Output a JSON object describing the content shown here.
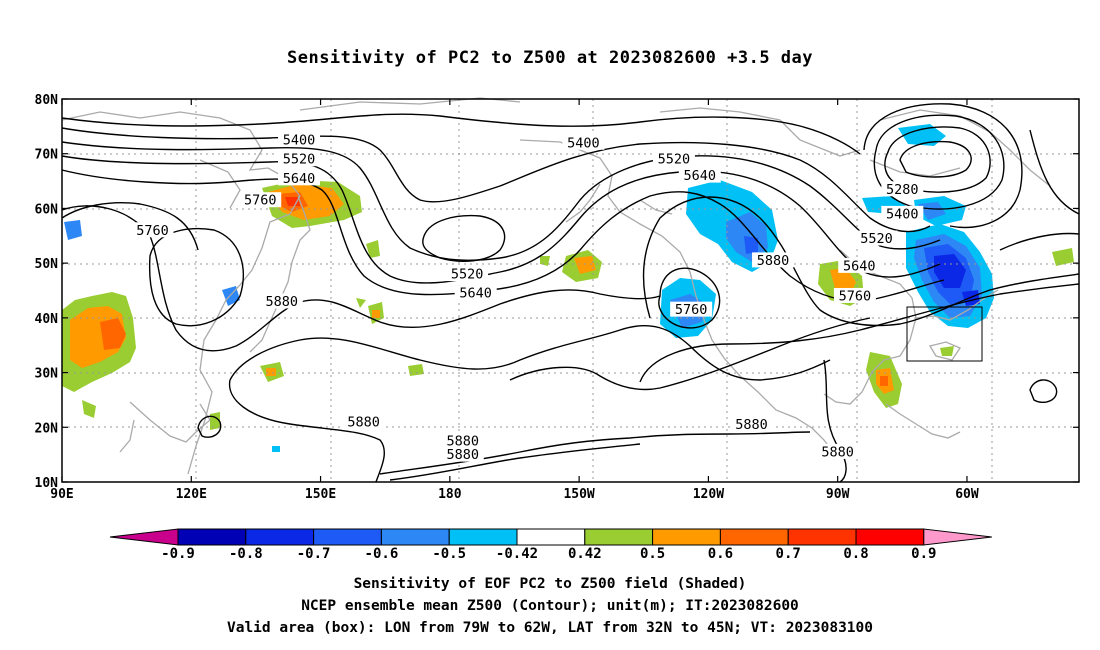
{
  "title": "Sensitivity of PC2 to Z500 at 2023082600 +3.5 day",
  "axes": {
    "x_ticks": [
      "90E",
      "120E",
      "150E",
      "180",
      "150W",
      "120W",
      "90W",
      "60W"
    ],
    "y_ticks": [
      "80N",
      "70N",
      "60N",
      "50N",
      "40N",
      "30N",
      "20N",
      "10N"
    ]
  },
  "contour_labels": [
    {
      "text": "5400",
      "lon": 145,
      "lat": 72.5
    },
    {
      "text": "5520",
      "lon": 145,
      "lat": 69
    },
    {
      "text": "5640",
      "lon": 145,
      "lat": 65.5
    },
    {
      "text": "5760",
      "lon": 136,
      "lat": 61.5
    },
    {
      "text": "5760",
      "lon": 111,
      "lat": 56
    },
    {
      "text": "5880",
      "lon": 141,
      "lat": 43
    },
    {
      "text": "5880",
      "lon": 160,
      "lat": 21
    },
    {
      "text": "5880",
      "lon": 183,
      "lat": 17.5
    },
    {
      "text": "5880",
      "lon": 183,
      "lat": 15
    },
    {
      "text": "5400",
      "lon": 211,
      "lat": 72
    },
    {
      "text": "5520",
      "lon": 232,
      "lat": 69
    },
    {
      "text": "5640",
      "lon": 238,
      "lat": 66
    },
    {
      "text": "5520",
      "lon": 184,
      "lat": 48
    },
    {
      "text": "5640",
      "lon": 186,
      "lat": 44.5
    },
    {
      "text": "5760",
      "lon": 236,
      "lat": 41.5
    },
    {
      "text": "5880",
      "lon": 255,
      "lat": 50.5
    },
    {
      "text": "5880",
      "lon": 250,
      "lat": 20.5
    },
    {
      "text": "5880",
      "lon": 270,
      "lat": 15.5
    },
    {
      "text": "5280",
      "lon": 285,
      "lat": 63.5
    },
    {
      "text": "5400",
      "lon": 285,
      "lat": 59
    },
    {
      "text": "5520",
      "lon": 279,
      "lat": 54.5
    },
    {
      "text": "5640",
      "lon": 275,
      "lat": 49.5
    },
    {
      "text": "5760",
      "lon": 274,
      "lat": 44
    }
  ],
  "colorbar": {
    "labels": [
      "-0.9",
      "-0.8",
      "-0.7",
      "-0.6",
      "-0.5",
      "-0.42",
      "0.42",
      "0.5",
      "0.6",
      "0.7",
      "0.8",
      "0.9"
    ],
    "colors": [
      "#c8008c",
      "#0000b4",
      "#0a28e6",
      "#1e5af5",
      "#2d87f5",
      "#00c0f5",
      "#ffffff",
      "#9acd32",
      "#ff9a00",
      "#ff6600",
      "#ff3300",
      "#ff0000",
      "#ff99cc"
    ]
  },
  "footer": {
    "line1": "Sensitivity of EOF PC2 to Z500 field (Shaded)",
    "line2": "NCEP ensemble mean Z500 (Contour); unit(m); IT:2023082600",
    "line3": "Valid area (box): LON from 79W to 62W, LAT from 32N to 45N; VT: 2023083100"
  }
}
